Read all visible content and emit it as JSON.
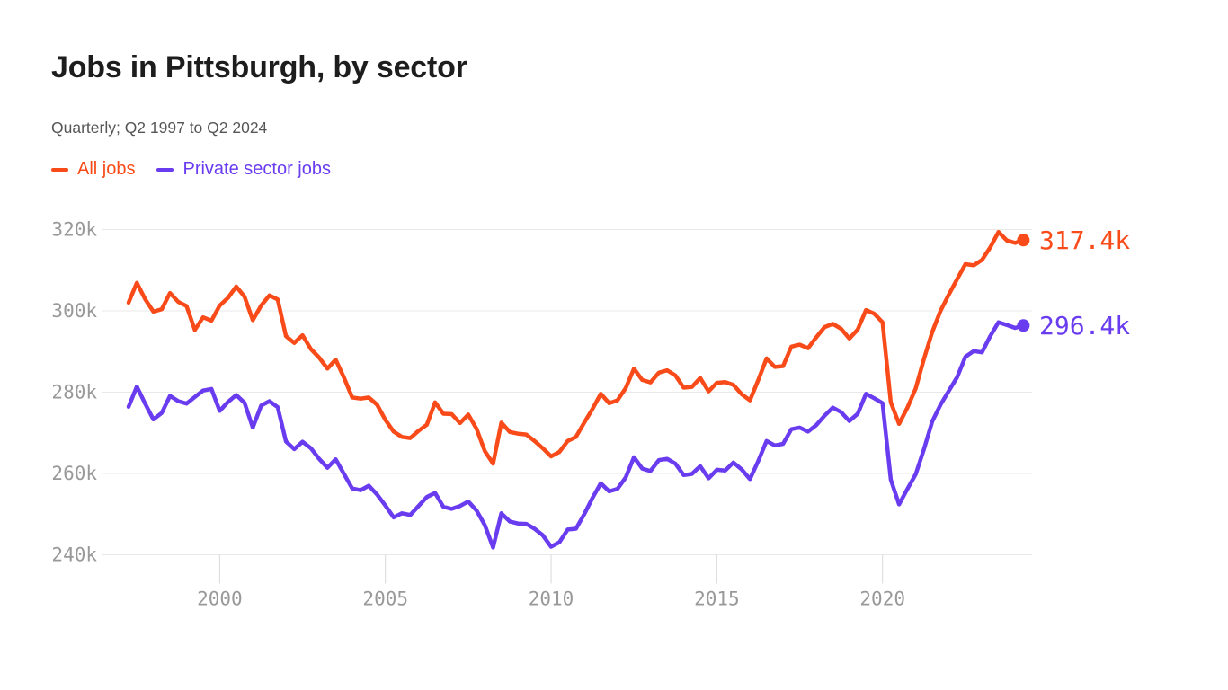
{
  "page": {
    "title": "Jobs in Pittsburgh, by sector",
    "subtitle": "Quarterly; Q2 1997 to Q2 2024"
  },
  "colors": {
    "all_jobs": "#f94b19",
    "private_jobs": "#6a3cf0",
    "title_text": "#1d1d1d",
    "subtitle_text": "#565656",
    "axis_text": "#999999",
    "gridline": "#e8e8e8",
    "tick": "#d9d9d9",
    "background": "#ffffff"
  },
  "chart_data": {
    "type": "line",
    "title": "Jobs in Pittsburgh, by sector",
    "subtitle": "Quarterly; Q2 1997 to Q2 2024",
    "xlabel": "",
    "ylabel": "",
    "unit_suffix": "k",
    "grid": "horizontal",
    "legend_position": "top-left",
    "ylim": [
      238,
      322
    ],
    "x": [
      "1997Q2",
      "1997Q3",
      "1997Q4",
      "1998Q1",
      "1998Q2",
      "1998Q3",
      "1998Q4",
      "1999Q1",
      "1999Q2",
      "1999Q3",
      "1999Q4",
      "2000Q1",
      "2000Q2",
      "2000Q3",
      "2000Q4",
      "2001Q1",
      "2001Q2",
      "2001Q3",
      "2001Q4",
      "2002Q1",
      "2002Q2",
      "2002Q3",
      "2002Q4",
      "2003Q1",
      "2003Q2",
      "2003Q3",
      "2003Q4",
      "2004Q1",
      "2004Q2",
      "2004Q3",
      "2004Q4",
      "2005Q1",
      "2005Q2",
      "2005Q3",
      "2005Q4",
      "2006Q1",
      "2006Q2",
      "2006Q3",
      "2006Q4",
      "2007Q1",
      "2007Q2",
      "2007Q3",
      "2007Q4",
      "2008Q1",
      "2008Q2",
      "2008Q3",
      "2008Q4",
      "2009Q1",
      "2009Q2",
      "2009Q3",
      "2009Q4",
      "2010Q1",
      "2010Q2",
      "2010Q3",
      "2010Q4",
      "2011Q1",
      "2011Q2",
      "2011Q3",
      "2011Q4",
      "2012Q1",
      "2012Q2",
      "2012Q3",
      "2012Q4",
      "2013Q1",
      "2013Q2",
      "2013Q3",
      "2013Q4",
      "2014Q1",
      "2014Q2",
      "2014Q3",
      "2014Q4",
      "2015Q1",
      "2015Q2",
      "2015Q3",
      "2015Q4",
      "2016Q1",
      "2016Q2",
      "2016Q3",
      "2016Q4",
      "2017Q1",
      "2017Q2",
      "2017Q3",
      "2017Q4",
      "2018Q1",
      "2018Q2",
      "2018Q3",
      "2018Q4",
      "2019Q1",
      "2019Q2",
      "2019Q3",
      "2019Q4",
      "2020Q1",
      "2020Q2",
      "2020Q3",
      "2020Q4",
      "2021Q1",
      "2021Q2",
      "2021Q3",
      "2021Q4",
      "2022Q1",
      "2022Q2",
      "2022Q3",
      "2022Q4",
      "2023Q1",
      "2023Q2",
      "2023Q3",
      "2023Q4",
      "2024Q1",
      "2024Q2"
    ],
    "series": [
      {
        "name": "All jobs",
        "color": "#f94b19",
        "end_label": "317.4k",
        "end_value": 317.4,
        "values": [
          302.0,
          306.9,
          302.9,
          299.8,
          300.4,
          304.4,
          302.2,
          301.2,
          295.3,
          298.4,
          297.6,
          301.3,
          303.2,
          306.0,
          303.5,
          297.7,
          301.3,
          303.8,
          302.8,
          293.8,
          292.1,
          294.0,
          290.6,
          288.5,
          285.8,
          288.0,
          283.6,
          278.7,
          278.4,
          278.7,
          276.9,
          273.2,
          270.3,
          269.0,
          268.7,
          270.5,
          272.0,
          277.5,
          274.7,
          274.6,
          272.4,
          274.5,
          271.0,
          265.5,
          262.4,
          272.5,
          270.2,
          269.8,
          269.6,
          268.0,
          266.2,
          264.2,
          265.3,
          268.0,
          269.0,
          272.5,
          275.9,
          279.6,
          277.3,
          278.0,
          281.0,
          285.8,
          283.0,
          282.4,
          284.8,
          285.4,
          284.1,
          281.1,
          281.3,
          283.5,
          280.2,
          282.3,
          282.5,
          281.8,
          279.5,
          278.0,
          283.0,
          288.3,
          286.2,
          286.4,
          291.2,
          291.7,
          290.8,
          293.5,
          296.0,
          296.8,
          295.6,
          293.2,
          295.4,
          300.2,
          299.3,
          297.2,
          277.5,
          272.2,
          276.2,
          280.9,
          288.2,
          294.8,
          300.0,
          304.0,
          307.8,
          311.5,
          311.2,
          312.5,
          315.6,
          319.4,
          317.3,
          316.7,
          317.4
        ]
      },
      {
        "name": "Private sector jobs",
        "color": "#6a3cf0",
        "end_label": "296.4k",
        "end_value": 296.4,
        "values": [
          276.4,
          281.4,
          277.2,
          273.3,
          274.9,
          279.1,
          277.8,
          277.2,
          278.8,
          280.4,
          280.8,
          275.4,
          277.6,
          279.3,
          277.4,
          271.3,
          276.7,
          277.8,
          276.3,
          267.9,
          266.0,
          267.8,
          266.2,
          263.6,
          261.4,
          263.5,
          259.9,
          256.3,
          255.9,
          257.0,
          254.8,
          252.1,
          249.2,
          250.2,
          249.8,
          252.0,
          254.2,
          255.2,
          251.8,
          251.3,
          252.0,
          253.1,
          250.9,
          247.3,
          241.8,
          250.2,
          248.2,
          247.7,
          247.6,
          246.4,
          244.8,
          242.0,
          243.1,
          246.2,
          246.4,
          250.0,
          254.0,
          257.6,
          255.6,
          256.2,
          259.0,
          264.0,
          261.2,
          260.6,
          263.3,
          263.6,
          262.4,
          259.6,
          259.9,
          261.8,
          258.8,
          260.9,
          260.7,
          262.7,
          261.0,
          258.6,
          263.1,
          268.0,
          266.9,
          267.3,
          270.9,
          271.3,
          270.3,
          271.9,
          274.2,
          276.2,
          275.1,
          272.9,
          274.7,
          279.6,
          278.5,
          277.3,
          258.5,
          252.4,
          256.2,
          259.8,
          266.0,
          272.8,
          276.9,
          280.3,
          283.7,
          288.7,
          290.1,
          289.8,
          293.8,
          297.2,
          296.5,
          295.8,
          296.4
        ]
      }
    ],
    "y_ticks": [
      {
        "value": 320,
        "label": "320k"
      },
      {
        "value": 300,
        "label": "300k"
      },
      {
        "value": 280,
        "label": "280k"
      },
      {
        "value": 260,
        "label": "260k"
      },
      {
        "value": 240,
        "label": "240k"
      }
    ],
    "x_ticks": [
      {
        "value": 2000,
        "label": "2000"
      },
      {
        "value": 2005,
        "label": "2005"
      },
      {
        "value": 2010,
        "label": "2010"
      },
      {
        "value": 2015,
        "label": "2015"
      },
      {
        "value": 2020,
        "label": "2020"
      }
    ]
  }
}
